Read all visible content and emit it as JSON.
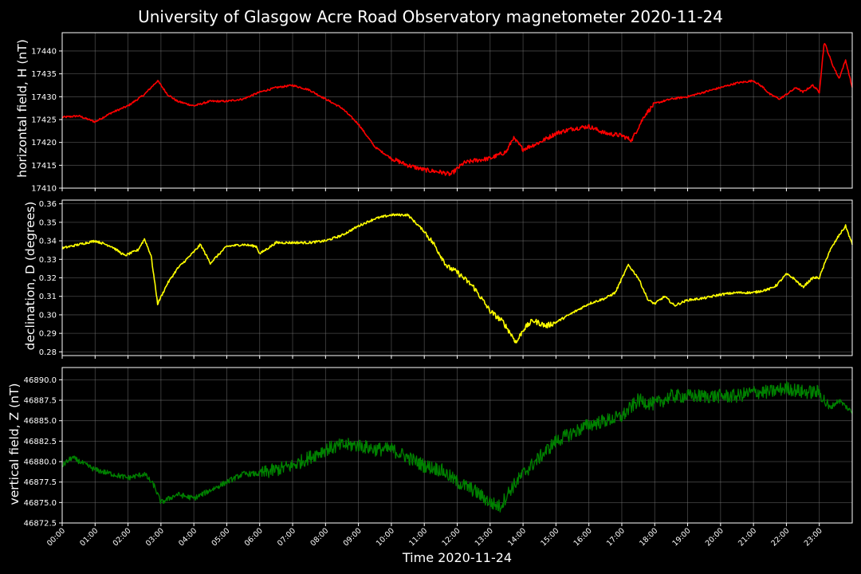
{
  "title": "University of Glasgow Acre Road Observatory magnetometer 2020-11-24",
  "xlabel": "Time 2020-11-24",
  "colors": {
    "background": "#000000",
    "grid": "#808080",
    "axis": "#ffffff",
    "text": "#ffffff"
  },
  "chart_data": [
    {
      "type": "line",
      "ylabel": "horizontal field, H (nT)",
      "color": "#ff0000",
      "ylim": [
        17410,
        17444
      ],
      "yticks": [
        "17410",
        "17415",
        "17420",
        "17425",
        "17430",
        "17435",
        "17440"
      ],
      "xlim": [
        0,
        24
      ],
      "xticks": [
        "00:00",
        "01:00",
        "02:00",
        "03:00",
        "04:00",
        "05:00",
        "06:00",
        "07:00",
        "08:00",
        "09:00",
        "10:00",
        "11:00",
        "12:00",
        "13:00",
        "14:00",
        "15:00",
        "16:00",
        "17:00",
        "18:00",
        "19:00",
        "20:00",
        "21:00",
        "22:00",
        "23:00"
      ],
      "grid": true,
      "series": [
        {
          "x": [
            0,
            0.5,
            1.0,
            1.5,
            2.0,
            2.5,
            2.9,
            3.2,
            3.5,
            4.0,
            4.5,
            5.0,
            5.5,
            6.0,
            6.5,
            7.0,
            7.5,
            8.0,
            8.5,
            9.0,
            9.5,
            10.0,
            10.5,
            11.0,
            11.5,
            11.8,
            12.2,
            12.5,
            13.0,
            13.5,
            13.7,
            14.0,
            14.5,
            15.0,
            15.5,
            16.0,
            16.5,
            17.0,
            17.3,
            17.7,
            18.0,
            18.5,
            19.0,
            19.5,
            20.0,
            20.5,
            21.0,
            21.3,
            21.5,
            21.8,
            22.0,
            22.3,
            22.5,
            22.8,
            23.0,
            23.15,
            23.4,
            23.6,
            23.8,
            24.0
          ],
          "y": [
            17425.5,
            17425.8,
            17424.5,
            17426.5,
            17428.0,
            17430.5,
            17433.5,
            17430.5,
            17429.0,
            17428.0,
            17429.0,
            17429.0,
            17429.5,
            17431.0,
            17432.0,
            17432.5,
            17431.5,
            17429.5,
            17427.5,
            17424.0,
            17419.0,
            17416.5,
            17415.0,
            17414.0,
            17413.5,
            17413.0,
            17415.5,
            17416.0,
            17416.5,
            17418.0,
            17421.0,
            17418.5,
            17420.0,
            17422.0,
            17423.0,
            17423.5,
            17422.0,
            17421.5,
            17420.5,
            17426.0,
            17428.5,
            17429.5,
            17430.0,
            17431.0,
            17432.0,
            17433.0,
            17433.5,
            17432.0,
            17430.5,
            17429.5,
            17430.5,
            17432.0,
            17431.0,
            17432.5,
            17431.0,
            17442.0,
            17437.0,
            17434.0,
            17438.0,
            17432.0
          ]
        }
      ]
    },
    {
      "type": "line",
      "ylabel": "declination, D (degrees)",
      "color": "#ffff00",
      "ylim": [
        0.278,
        0.362
      ],
      "yticks": [
        "0.28",
        "0.29",
        "0.30",
        "0.31",
        "0.32",
        "0.33",
        "0.34",
        "0.35",
        "0.36"
      ],
      "xlim": [
        0,
        24
      ],
      "grid": true,
      "series": [
        {
          "x": [
            0,
            0.5,
            1.0,
            1.5,
            1.9,
            2.3,
            2.5,
            2.7,
            2.9,
            3.2,
            3.5,
            4.0,
            4.2,
            4.5,
            5.0,
            5.5,
            5.9,
            6.0,
            6.5,
            7.0,
            7.5,
            8.0,
            8.5,
            9.0,
            9.5,
            10.0,
            10.5,
            11.0,
            11.3,
            11.7,
            12.0,
            12.5,
            13.0,
            13.4,
            13.8,
            14.0,
            14.3,
            14.7,
            15.0,
            15.5,
            16.0,
            16.5,
            16.8,
            17.2,
            17.5,
            17.8,
            18.0,
            18.3,
            18.6,
            19.0,
            19.5,
            20.0,
            20.5,
            21.0,
            21.5,
            21.7,
            22.0,
            22.2,
            22.5,
            22.8,
            23.0,
            23.3,
            23.6,
            23.8,
            24.0
          ],
          "y": [
            0.336,
            0.338,
            0.34,
            0.337,
            0.332,
            0.335,
            0.341,
            0.332,
            0.306,
            0.317,
            0.325,
            0.334,
            0.338,
            0.328,
            0.337,
            0.338,
            0.337,
            0.333,
            0.339,
            0.339,
            0.339,
            0.34,
            0.343,
            0.348,
            0.352,
            0.354,
            0.354,
            0.345,
            0.338,
            0.326,
            0.323,
            0.315,
            0.302,
            0.296,
            0.285,
            0.292,
            0.297,
            0.294,
            0.296,
            0.301,
            0.306,
            0.309,
            0.312,
            0.327,
            0.32,
            0.308,
            0.306,
            0.31,
            0.305,
            0.308,
            0.309,
            0.311,
            0.312,
            0.312,
            0.314,
            0.316,
            0.322,
            0.32,
            0.315,
            0.32,
            0.32,
            0.334,
            0.343,
            0.348,
            0.338
          ]
        }
      ]
    },
    {
      "type": "line",
      "ylabel": "vertical field, Z (nT)",
      "color": "#008000",
      "ylim": [
        46872.5,
        46891.5
      ],
      "yticks": [
        "46872.5",
        "46875.0",
        "46877.5",
        "46880.0",
        "46882.5",
        "46885.0",
        "46887.5",
        "46890.0"
      ],
      "xlim": [
        0,
        24
      ],
      "grid": true,
      "series": [
        {
          "x": [
            0,
            0.3,
            1.0,
            1.5,
            2.0,
            2.5,
            2.8,
            3.0,
            3.5,
            4.0,
            4.5,
            5.0,
            5.5,
            6.0,
            6.5,
            7.0,
            7.5,
            8.0,
            8.5,
            9.0,
            9.5,
            10.0,
            10.5,
            11.0,
            11.5,
            12.0,
            12.5,
            13.0,
            13.3,
            13.6,
            14.0,
            14.5,
            15.0,
            15.5,
            16.0,
            16.5,
            17.0,
            17.5,
            18.0,
            18.5,
            19.0,
            19.5,
            20.0,
            20.5,
            21.0,
            21.5,
            22.0,
            22.5,
            23.0,
            23.3,
            23.6,
            24.0
          ],
          "y": [
            46879.5,
            46880.5,
            46879.0,
            46878.5,
            46878.0,
            46878.5,
            46877.0,
            46875.0,
            46876.0,
            46875.5,
            46876.5,
            46877.5,
            46878.5,
            46878.5,
            46879.0,
            46879.5,
            46880.5,
            46881.5,
            46882.0,
            46882.0,
            46881.5,
            46881.5,
            46880.5,
            46879.5,
            46879.0,
            46877.5,
            46876.5,
            46875.0,
            46874.5,
            46876.5,
            46878.5,
            46880.5,
            46882.5,
            46883.5,
            46884.5,
            46885.0,
            46885.5,
            46887.5,
            46887.0,
            46888.0,
            46888.0,
            46888.0,
            46888.0,
            46888.0,
            46888.5,
            46888.5,
            46889.0,
            46888.5,
            46888.5,
            46886.5,
            46887.5,
            46886.0
          ]
        }
      ]
    }
  ]
}
